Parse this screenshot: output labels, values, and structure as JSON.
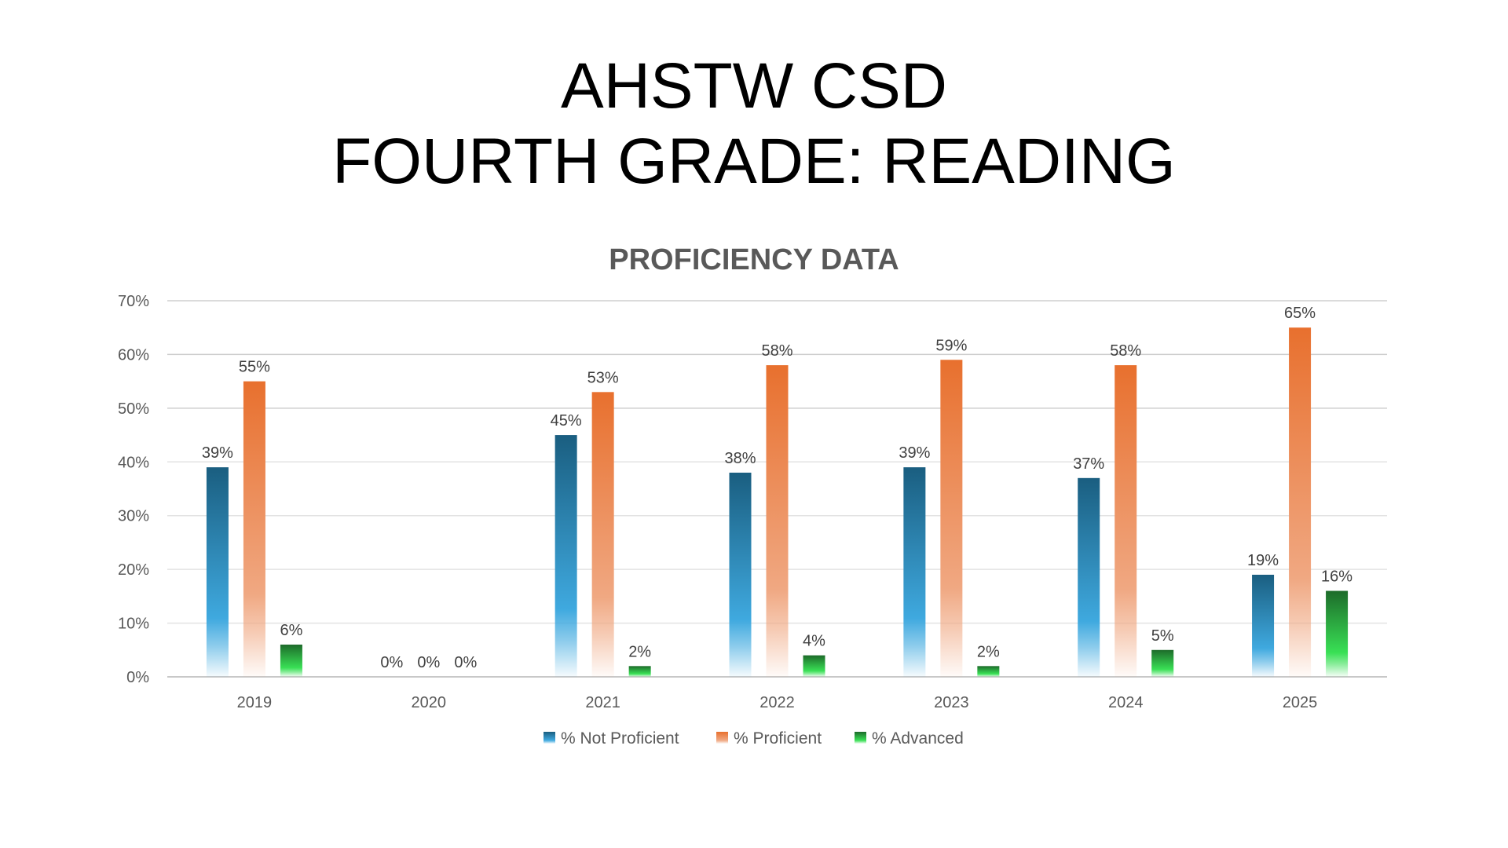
{
  "slide": {
    "title_line1": "AHSTW CSD",
    "title_line2": "FOURTH GRADE: READING"
  },
  "chart_data": {
    "type": "bar",
    "title": "PROFICIENCY DATA",
    "xlabel": "",
    "ylabel": "",
    "ylim": [
      0,
      70
    ],
    "yticks": [
      "0%",
      "10%",
      "20%",
      "30%",
      "40%",
      "50%",
      "60%",
      "70%"
    ],
    "grid": true,
    "legend_position": "bottom",
    "categories": [
      "2019",
      "2020",
      "2021",
      "2022",
      "2023",
      "2024",
      "2025"
    ],
    "series": [
      {
        "name": "% Not Proficient",
        "values": [
          39,
          0,
          45,
          38,
          39,
          37,
          19
        ],
        "labels": [
          "39%",
          "0%",
          "45%",
          "38%",
          "39%",
          "37%",
          "19%"
        ],
        "color_top": "#1a5e80",
        "color_mid": "#3fa9df"
      },
      {
        "name": "% Proficient",
        "values": [
          55,
          0,
          53,
          58,
          59,
          58,
          65
        ],
        "labels": [
          "55%",
          "0%",
          "53%",
          "58%",
          "59%",
          "58%",
          "65%"
        ],
        "color_top": "#e8702e",
        "color_mid": "#f0a882"
      },
      {
        "name": "% Advanced",
        "values": [
          6,
          0,
          2,
          4,
          2,
          5,
          16
        ],
        "labels": [
          "6%",
          "0%",
          "2%",
          "4%",
          "2%",
          "5%",
          "16%"
        ],
        "color_top": "#1d6b2a",
        "color_mid": "#39e055"
      }
    ]
  }
}
